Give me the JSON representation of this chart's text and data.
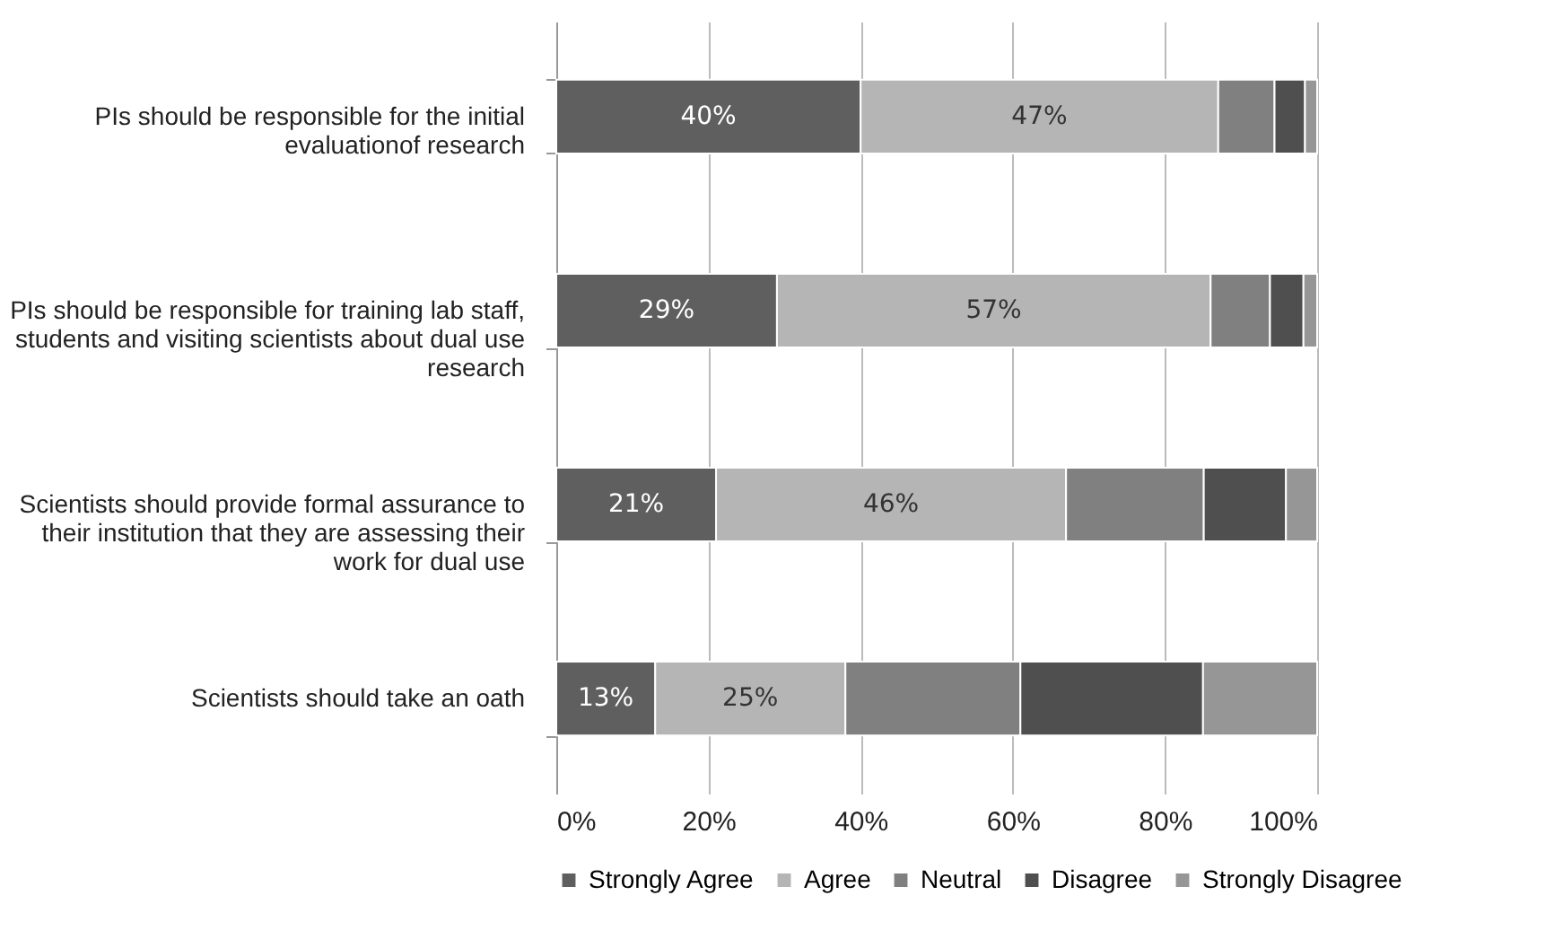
{
  "chart_data": {
    "type": "bar",
    "orientation": "horizontal",
    "stacked": true,
    "categories": [
      "PIs should be responsible for the initial evaluationof research",
      "PIs should be responsible for training lab staff, students and visiting scientists about dual use research",
      "Scientists should provide formal assurance to their institution that they are assessing their work for dual use",
      "Scientists should take an oath"
    ],
    "series": [
      {
        "name": "Strongly Agree",
        "color": "#5f5f5f",
        "values": [
          40,
          29,
          21,
          13
        ],
        "value_labels": [
          "40%",
          "29%",
          "21%",
          "13%"
        ]
      },
      {
        "name": "Agree",
        "color": "#b5b5b5",
        "values": [
          47,
          57,
          46,
          25
        ],
        "value_labels": [
          "47%",
          "57%",
          "46%",
          "25%"
        ]
      },
      {
        "name": "Neutral",
        "color": "#808080",
        "values": [
          7.4,
          7.8,
          18.1,
          23
        ]
      },
      {
        "name": "Disagree",
        "color": "#4f4f4f",
        "values": [
          4,
          4.4,
          10.8,
          24
        ]
      },
      {
        "name": "Strongly Disagree",
        "color": "#969696",
        "values": [
          1.6,
          1.8,
          4.1,
          15
        ]
      }
    ],
    "xlim": [
      0,
      100
    ],
    "xticks": [
      {
        "value": 0,
        "label": "0%"
      },
      {
        "value": 20,
        "label": "20%"
      },
      {
        "value": 40,
        "label": "40%"
      },
      {
        "value": 60,
        "label": "60%"
      },
      {
        "value": 80,
        "label": "80%"
      },
      {
        "value": 100,
        "label": "100%"
      }
    ],
    "grid": "x",
    "legend": "bottom"
  }
}
